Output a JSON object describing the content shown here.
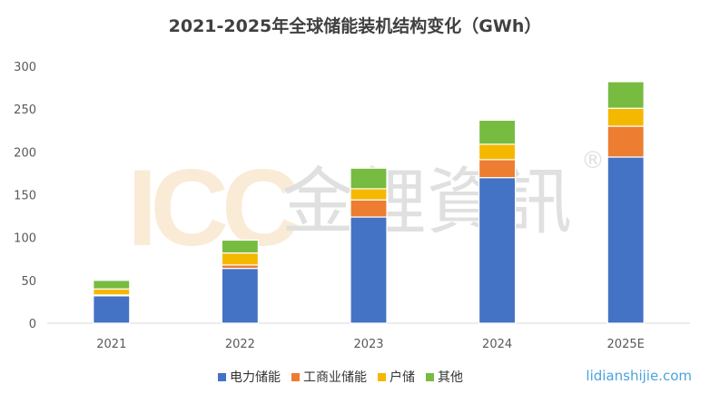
{
  "chart_data": {
    "type": "bar",
    "stacked": true,
    "title": "2021-2025年全球储能装机结构变化（GWh）",
    "categories": [
      "2021",
      "2022",
      "2023",
      "2024",
      "2025E"
    ],
    "ylim": [
      0,
      300
    ],
    "yticks": [
      0,
      50,
      100,
      150,
      200,
      250,
      300
    ],
    "grid": false,
    "legend_position": "bottom",
    "series": [
      {
        "name": "电力储能",
        "color": "#4472c4",
        "values": [
          32,
          64,
          124,
          170,
          194
        ]
      },
      {
        "name": "工商业储能",
        "color": "#ed7d31",
        "values": [
          1,
          4,
          20,
          21,
          36
        ]
      },
      {
        "name": "户储",
        "color": "#f5b800",
        "values": [
          7,
          14,
          13,
          18,
          21
        ]
      },
      {
        "name": "其他",
        "color": "#77bb41",
        "values": [
          10,
          15,
          24,
          28,
          31
        ]
      }
    ]
  },
  "watermark": {
    "text": "ICC 金鋰資訊®"
  },
  "site": "lidianshijie.com"
}
